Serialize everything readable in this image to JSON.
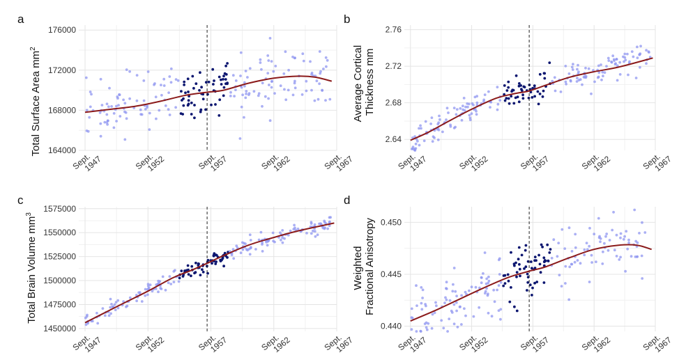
{
  "colors": {
    "light_points": "#8f95f0",
    "dark_points": "#0c1670",
    "trend": "#8b1a1a",
    "grid": "#e4e4e4"
  },
  "chart_data": [
    {
      "panel": "a",
      "type": "scatter",
      "ylabel": "Total Surface Area mm",
      "ylabel_superscript": "2",
      "ylabel_line2": "",
      "xlim": [
        1946.5,
        1967
      ],
      "ylim": [
        164000,
        176500
      ],
      "y_ticks": [
        164000,
        168000,
        172000,
        176000
      ],
      "y_tick_labels": [
        "164000",
        "168000",
        "172000",
        "176000"
      ],
      "x_ticks": [
        1947,
        1952,
        1957,
        1962,
        1967
      ],
      "x_tick_labels": [
        [
          "Sept.",
          "1947"
        ],
        [
          "Sept.",
          "1952"
        ],
        [
          "Sept.",
          "1957"
        ],
        [
          "Sept.",
          "1962"
        ],
        [
          "Sept.",
          "1967"
        ]
      ],
      "vline_x": 1956.7,
      "dark_range": [
        1954.5,
        1958.5
      ],
      "scatter": {
        "seed": 11,
        "n": 230,
        "noise": 1400,
        "dark_noise": 1500
      },
      "trend_points": [
        [
          1947,
          167800
        ],
        [
          1949,
          168100
        ],
        [
          1951,
          168400
        ],
        [
          1953,
          168900
        ],
        [
          1955,
          169500
        ],
        [
          1956.7,
          169800
        ],
        [
          1958,
          170000
        ],
        [
          1960,
          170700
        ],
        [
          1962,
          171200
        ],
        [
          1964,
          171400
        ],
        [
          1965.3,
          171300
        ],
        [
          1966.6,
          170900
        ]
      ]
    },
    {
      "panel": "b",
      "type": "scatter",
      "ylabel": "Average Cortical",
      "ylabel_superscript": "",
      "ylabel_line2": "Thickness mm",
      "xlim": [
        1946.5,
        1967
      ],
      "ylim": [
        2.628,
        2.765
      ],
      "y_ticks": [
        2.64,
        2.68,
        2.72,
        2.76
      ],
      "y_tick_labels": [
        "2.64",
        "2.68",
        "2.72",
        "2.76"
      ],
      "x_ticks": [
        1947,
        1952,
        1957,
        1962,
        1967
      ],
      "x_tick_labels": [
        [
          "Sept.",
          "1947"
        ],
        [
          "Sept.",
          "1952"
        ],
        [
          "Sept.",
          "1957"
        ],
        [
          "Sept.",
          "1962"
        ],
        [
          "Sept.",
          "1967"
        ]
      ],
      "vline_x": 1956.7,
      "dark_range": [
        1954.5,
        1958.5
      ],
      "scatter": {
        "seed": 23,
        "n": 230,
        "noise": 0.008,
        "dark_noise": 0.008
      },
      "trend_points": [
        [
          1947,
          2.639
        ],
        [
          1948.5,
          2.648
        ],
        [
          1950,
          2.659
        ],
        [
          1952,
          2.673
        ],
        [
          1954,
          2.685
        ],
        [
          1955.5,
          2.69
        ],
        [
          1956.7,
          2.693
        ],
        [
          1958,
          2.699
        ],
        [
          1960,
          2.708
        ],
        [
          1962,
          2.714
        ],
        [
          1964,
          2.719
        ],
        [
          1966.8,
          2.729
        ]
      ]
    },
    {
      "panel": "c",
      "type": "scatter",
      "ylabel": "Total Brain Volume mm",
      "ylabel_superscript": "3",
      "ylabel_line2": "",
      "xlim": [
        1946.5,
        1967
      ],
      "ylim": [
        1447000,
        1577000
      ],
      "y_ticks": [
        1450000,
        1475000,
        1500000,
        1525000,
        1550000,
        1575000
      ],
      "y_tick_labels": [
        "1450000",
        "1475000",
        "1500000",
        "1525000",
        "1550000",
        "1575000"
      ],
      "x_ticks": [
        1947,
        1952,
        1957,
        1962,
        1967
      ],
      "x_tick_labels": [
        [
          "Sept.",
          "1947"
        ],
        [
          "Sept.",
          "1952"
        ],
        [
          "Sept.",
          "1957"
        ],
        [
          "Sept.",
          "1962"
        ],
        [
          "Sept.",
          "1967"
        ]
      ],
      "vline_x": 1956.7,
      "dark_range": [
        1954.5,
        1958.5
      ],
      "scatter": {
        "seed": 37,
        "n": 230,
        "noise": 4000,
        "dark_noise": 4000
      },
      "trend_points": [
        [
          1947,
          1456000
        ],
        [
          1948.5,
          1466000
        ],
        [
          1950,
          1476000
        ],
        [
          1952,
          1489000
        ],
        [
          1954,
          1503000
        ],
        [
          1955.5,
          1511000
        ],
        [
          1956.7,
          1518000
        ],
        [
          1958,
          1526000
        ],
        [
          1960,
          1537000
        ],
        [
          1962,
          1545000
        ],
        [
          1964,
          1552000
        ],
        [
          1966.8,
          1560000
        ]
      ]
    },
    {
      "panel": "d",
      "type": "scatter",
      "ylabel": "Weighted",
      "ylabel_superscript": "",
      "ylabel_line2": "Fractional Anisotropy",
      "xlim": [
        1946.5,
        1967
      ],
      "ylim": [
        0.4395,
        0.4515
      ],
      "y_ticks": [
        0.44,
        0.445,
        0.45
      ],
      "y_tick_labels": [
        "0.440",
        "0.445",
        "0.450"
      ],
      "x_ticks": [
        1947,
        1952,
        1957,
        1962,
        1967
      ],
      "x_tick_labels": [
        [
          "Sept.",
          "1947"
        ],
        [
          "Sept.",
          "1952"
        ],
        [
          "Sept.",
          "1957"
        ],
        [
          "Sept.",
          "1962"
        ],
        [
          "Sept.",
          "1967"
        ]
      ],
      "vline_x": 1956.7,
      "dark_range": [
        1954.5,
        1958.5
      ],
      "scatter": {
        "seed": 53,
        "n": 230,
        "noise": 0.0014,
        "dark_noise": 0.0013
      },
      "trend_points": [
        [
          1947,
          0.4405
        ],
        [
          1949,
          0.4415
        ],
        [
          1951,
          0.4426
        ],
        [
          1953,
          0.4437
        ],
        [
          1955,
          0.4447
        ],
        [
          1956.7,
          0.4453
        ],
        [
          1958,
          0.4457
        ],
        [
          1960,
          0.4466
        ],
        [
          1962,
          0.4474
        ],
        [
          1964,
          0.4478
        ],
        [
          1965.5,
          0.4478
        ],
        [
          1966.7,
          0.4474
        ]
      ]
    }
  ]
}
